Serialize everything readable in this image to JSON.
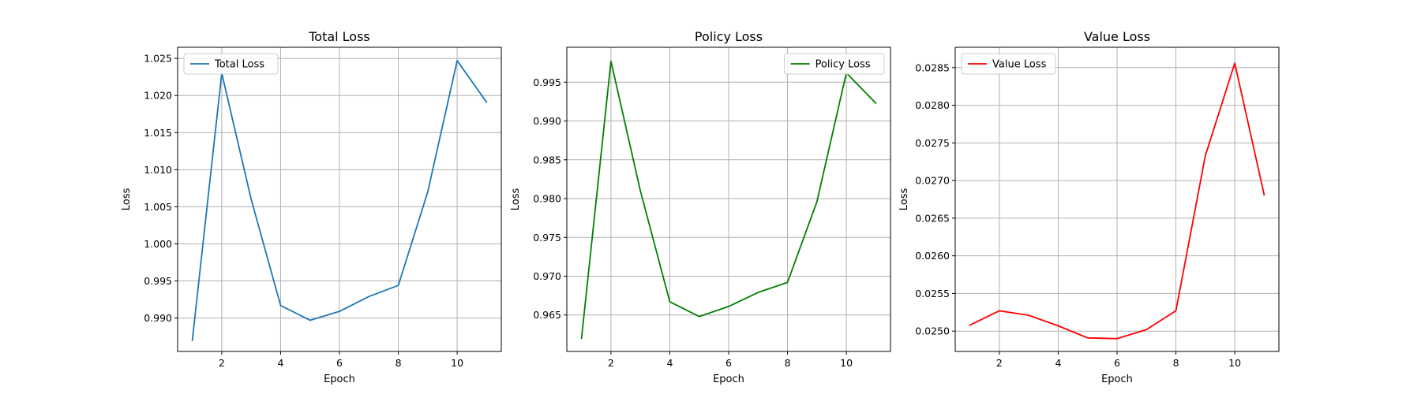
{
  "chart_data": [
    {
      "type": "line",
      "title": "Total Loss",
      "xlabel": "Epoch",
      "ylabel": "Loss",
      "grid": true,
      "legend_position": "upper-left",
      "xlim": [
        0.5,
        11.5
      ],
      "ylim": [
        0.9855,
        1.0265
      ],
      "xticks": [
        2,
        4,
        6,
        8,
        10
      ],
      "yticks": [
        0.99,
        0.995,
        1.0,
        1.005,
        1.01,
        1.015,
        1.02,
        1.025
      ],
      "ytick_labels": [
        "0.990",
        "0.995",
        "1.000",
        "1.005",
        "1.010",
        "1.015",
        "1.020",
        "1.025"
      ],
      "series": [
        {
          "name": "Total Loss",
          "color": "#1f77b4",
          "x": [
            1,
            2,
            3,
            4,
            5,
            6,
            7,
            8,
            9,
            10,
            11
          ],
          "y": [
            0.987,
            1.023,
            1.006,
            0.9917,
            0.9897,
            0.9909,
            0.9929,
            0.9944,
            1.007,
            1.0247,
            1.0191
          ]
        }
      ]
    },
    {
      "type": "line",
      "title": "Policy Loss",
      "xlabel": "Epoch",
      "ylabel": "Loss",
      "grid": true,
      "legend_position": "upper-right",
      "xlim": [
        0.5,
        11.5
      ],
      "ylim": [
        0.9603,
        0.9995
      ],
      "xticks": [
        2,
        4,
        6,
        8,
        10
      ],
      "yticks": [
        0.965,
        0.97,
        0.975,
        0.98,
        0.985,
        0.99,
        0.995
      ],
      "ytick_labels": [
        "0.965",
        "0.970",
        "0.975",
        "0.980",
        "0.985",
        "0.990",
        "0.995"
      ],
      "series": [
        {
          "name": "Policy Loss",
          "color": "#008000",
          "x": [
            1,
            2,
            3,
            4,
            5,
            6,
            7,
            8,
            9,
            10,
            11
          ],
          "y": [
            0.962,
            0.9977,
            0.981,
            0.9667,
            0.9648,
            0.9661,
            0.9679,
            0.9692,
            0.9796,
            0.9962,
            0.9923
          ]
        }
      ]
    },
    {
      "type": "line",
      "title": "Value Loss",
      "xlabel": "Epoch",
      "ylabel": "Loss",
      "grid": true,
      "legend_position": "upper-left",
      "xlim": [
        0.5,
        11.5
      ],
      "ylim": [
        0.02473,
        0.02877
      ],
      "xticks": [
        2,
        4,
        6,
        8,
        10
      ],
      "yticks": [
        0.025,
        0.0255,
        0.026,
        0.0265,
        0.027,
        0.0275,
        0.028,
        0.0285
      ],
      "ytick_labels": [
        "0.0250",
        "0.0255",
        "0.0260",
        "0.0265",
        "0.0270",
        "0.0275",
        "0.0280",
        "0.0285"
      ],
      "series": [
        {
          "name": "Value Loss",
          "color": "#ff0000",
          "x": [
            1,
            2,
            3,
            4,
            5,
            6,
            7,
            8,
            9,
            10,
            11
          ],
          "y": [
            0.02508,
            0.02527,
            0.02521,
            0.02507,
            0.02491,
            0.0249,
            0.02502,
            0.02527,
            0.02733,
            0.02856,
            0.02681
          ]
        }
      ]
    }
  ]
}
